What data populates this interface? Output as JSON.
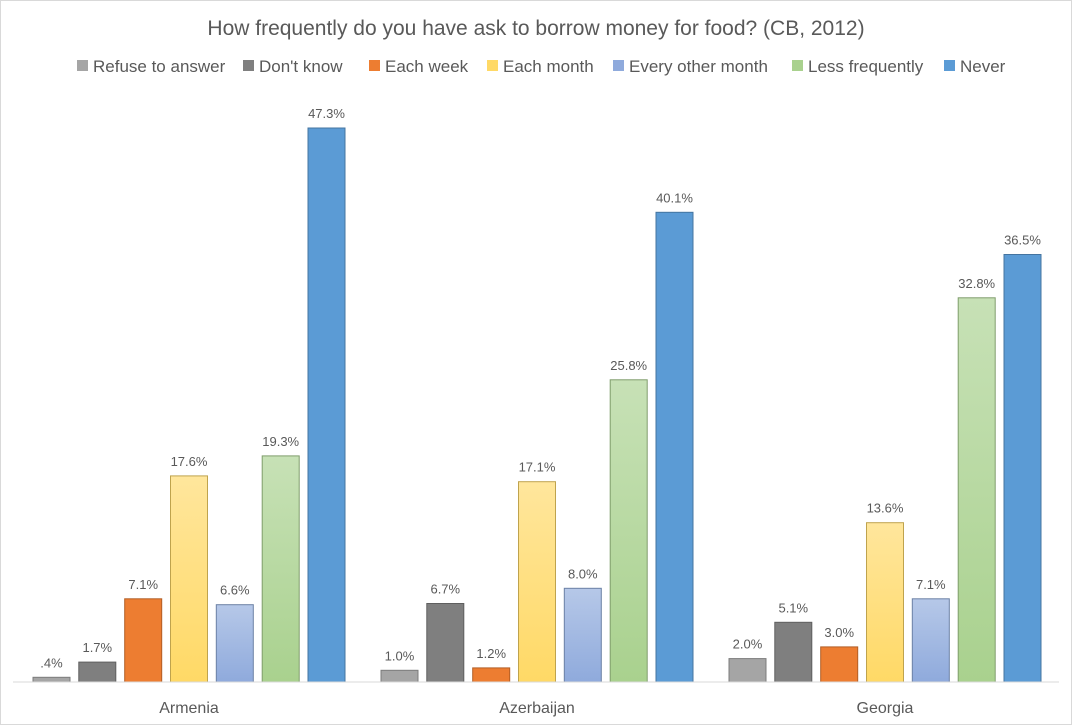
{
  "chart_data": {
    "type": "bar",
    "title": "How frequently do you have ask to borrow money for food? (CB, 2012)",
    "categories": [
      "Armenia",
      "Azerbaijan",
      "Georgia"
    ],
    "ylim": [
      0,
      50
    ],
    "grid": false,
    "legend_position": "top",
    "series": [
      {
        "name": "Refuse to answer",
        "color": "#a5a5a5",
        "values": [
          0.4,
          1.0,
          2.0
        ],
        "labels": [
          ".4%",
          "1.0%",
          "2.0%"
        ]
      },
      {
        "name": "Don't know",
        "color": "#7f7f7f",
        "values": [
          1.7,
          6.7,
          5.1
        ],
        "labels": [
          "1.7%",
          "6.7%",
          "5.1%"
        ]
      },
      {
        "name": "Each week",
        "color": "#ed7d31",
        "values": [
          7.1,
          1.2,
          3.0
        ],
        "labels": [
          "7.1%",
          "1.2%",
          "3.0%"
        ]
      },
      {
        "name": "Each month",
        "color": "#ffd966",
        "values": [
          17.6,
          17.1,
          13.6
        ],
        "labels": [
          "17.6%",
          "17.1%",
          "13.6%"
        ]
      },
      {
        "name": "Every other month",
        "color": "#8faadc",
        "values": [
          6.6,
          8.0,
          7.1
        ],
        "labels": [
          "6.6%",
          "8.0%",
          "7.1%"
        ]
      },
      {
        "name": "Less frequently",
        "color": "#a9d18e",
        "values": [
          19.3,
          25.8,
          32.8
        ],
        "labels": [
          "19.3%",
          "25.8%",
          "32.8%"
        ]
      },
      {
        "name": "Never",
        "color": "#5b9bd5",
        "values": [
          47.3,
          40.1,
          36.5
        ],
        "labels": [
          "47.3%",
          "40.1%",
          "36.5%"
        ]
      }
    ]
  }
}
